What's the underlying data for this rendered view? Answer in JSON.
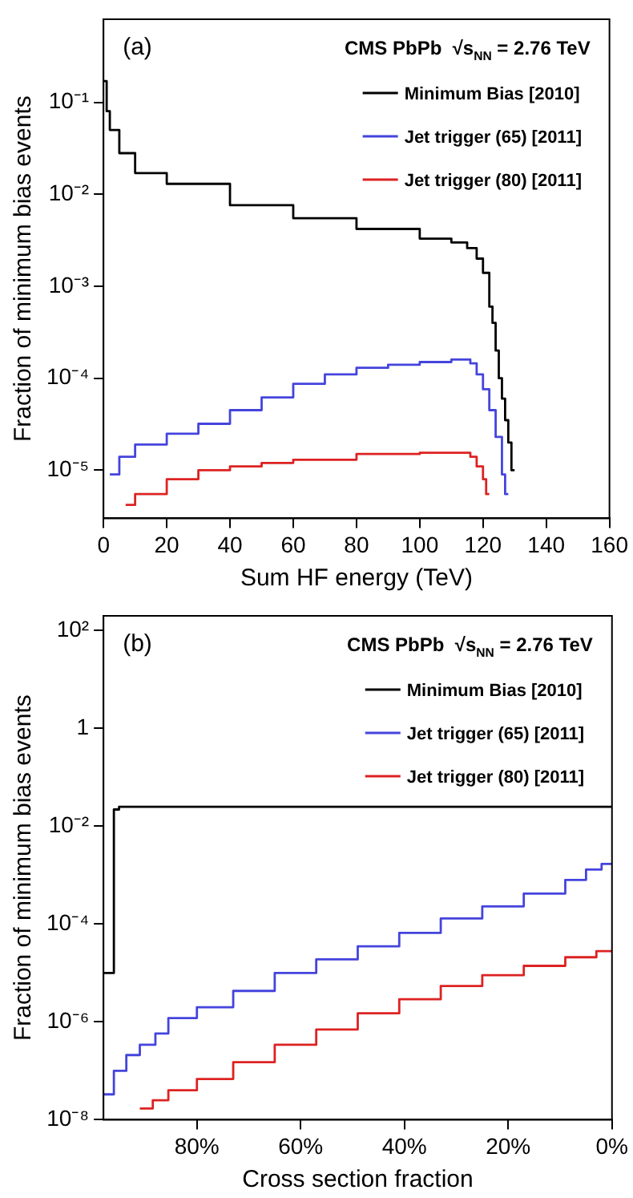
{
  "chart_data": [
    {
      "type": "step",
      "xlabel": "Sum HF energy (TeV)",
      "ylabel": "Fraction of minimum bias events",
      "annotations": [
        "(a)",
        "CMS PbPb  √s$_{NN}$ = 2.76 TeV"
      ],
      "log": "y",
      "grid": false,
      "legend": "top right",
      "xlim": [
        0,
        160
      ],
      "xticks": [
        0,
        20,
        40,
        60,
        80,
        100,
        120,
        140,
        160
      ],
      "ylim": [
        3e-06,
        0.8
      ],
      "yticks": [
        {
          "value": 1e-05,
          "label": "10⁻⁵"
        },
        {
          "value": 0.0001,
          "label": "10⁻⁴"
        },
        {
          "value": 0.001,
          "label": "10⁻³"
        },
        {
          "value": 0.01,
          "label": "10⁻²"
        },
        {
          "value": 0.1,
          "label": "10⁻¹"
        }
      ],
      "series": [
        {
          "name": "Minimum Bias [2010]",
          "color": "#000000",
          "x": [
            0,
            1,
            2,
            5,
            10,
            20,
            40,
            60,
            80,
            100,
            110,
            115,
            118,
            120,
            122,
            123,
            124,
            125,
            126,
            127,
            128,
            129,
            130
          ],
          "values": [
            0.17,
            0.08,
            0.05,
            0.028,
            0.017,
            0.013,
            0.0076,
            0.0055,
            0.0042,
            0.0033,
            0.003,
            0.0026,
            0.002,
            0.0014,
            0.0006,
            0.0004,
            0.0002,
            0.0001,
            6e-05,
            3.5e-05,
            2e-05,
            1e-05,
            1e-05
          ]
        },
        {
          "name": "Jet trigger (65) [2011]",
          "color": "#4444dd",
          "x": [
            2,
            5,
            10,
            20,
            30,
            40,
            50,
            60,
            70,
            80,
            90,
            100,
            110,
            114,
            116,
            118,
            120,
            122,
            124,
            126,
            127,
            128
          ],
          "values": [
            9e-06,
            1.4e-05,
            1.9e-05,
            2.5e-05,
            3.2e-05,
            4.5e-05,
            6.2e-05,
            8.7e-05,
            0.00011,
            0.00013,
            0.00014,
            0.00015,
            0.00016,
            0.00016,
            0.000145,
            0.00011,
            7.6e-05,
            4.5e-05,
            2.3e-05,
            9e-06,
            5.5e-06,
            5.5e-06
          ]
        },
        {
          "name": "Jet trigger (80) [2011]",
          "color": "#dd2222",
          "x": [
            7,
            10,
            20,
            30,
            40,
            50,
            60,
            80,
            100,
            112,
            116,
            118,
            120,
            121,
            122
          ],
          "values": [
            4.2e-06,
            5.5e-06,
            8e-06,
            1e-05,
            1.1e-05,
            1.2e-05,
            1.3e-05,
            1.5e-05,
            1.55e-05,
            1.55e-05,
            1.4e-05,
            1.1e-05,
            8e-06,
            5.5e-06,
            5.5e-06
          ]
        }
      ]
    },
    {
      "type": "step",
      "xlabel": "Cross section fraction",
      "ylabel": "Fraction of minimum bias events",
      "annotations": [
        "(b)",
        "CMS PbPb  √s$_{NN}$ = 2.76 TeV"
      ],
      "log": "y",
      "grid": false,
      "legend": "top right",
      "xlim": [
        98,
        0
      ],
      "xticks": [
        {
          "value": 80,
          "label": "80%"
        },
        {
          "value": 60,
          "label": "60%"
        },
        {
          "value": 40,
          "label": "40%"
        },
        {
          "value": 20,
          "label": "20%"
        },
        {
          "value": 0,
          "label": "0%"
        }
      ],
      "ylim": [
        1e-08,
        200
      ],
      "yticks": [
        {
          "value": 1e-08,
          "label": "10⁻⁸"
        },
        {
          "value": 1e-06,
          "label": "10⁻⁶"
        },
        {
          "value": 0.0001,
          "label": "10⁻⁴"
        },
        {
          "value": 0.01,
          "label": "10⁻²"
        },
        1,
        {
          "value": 100,
          "label": "10²"
        }
      ],
      "series": [
        {
          "name": "Minimum Bias [2010]",
          "color": "#000000",
          "x": [
            98,
            96,
            95,
            0
          ],
          "values": [
            1e-05,
            0.022,
            0.025,
            0.025
          ]
        },
        {
          "name": "Jet trigger (65) [2011]",
          "color": "#4444dd",
          "x": [
            98,
            96,
            93.6,
            91,
            88,
            85.5,
            80,
            73,
            65,
            57,
            49,
            41,
            33,
            25,
            17,
            9,
            5,
            2,
            0
          ],
          "values": [
            3.3e-08,
            1e-07,
            2.1e-07,
            3.4e-07,
            5.8e-07,
            1.2e-06,
            2e-06,
            4.3e-06,
            1e-05,
            1.9e-05,
            3.5e-05,
            6.6e-05,
            0.00013,
            0.00023,
            0.00042,
            0.0008,
            0.0013,
            0.0017,
            0.0017
          ]
        },
        {
          "name": "Jet trigger (80) [2011]",
          "color": "#dd2222",
          "x": [
            91,
            88.5,
            85.5,
            80,
            73,
            65,
            57,
            49,
            41,
            33,
            25,
            17,
            9,
            3,
            0
          ],
          "values": [
            1.7e-08,
            2.5e-08,
            4e-08,
            6.8e-08,
            1.5e-07,
            3.4e-07,
            7e-07,
            1.5e-06,
            2.9e-06,
            5.4e-06,
            9e-06,
            1.4e-05,
            2.1e-05,
            2.8e-05,
            2.8e-05
          ]
        }
      ]
    }
  ]
}
